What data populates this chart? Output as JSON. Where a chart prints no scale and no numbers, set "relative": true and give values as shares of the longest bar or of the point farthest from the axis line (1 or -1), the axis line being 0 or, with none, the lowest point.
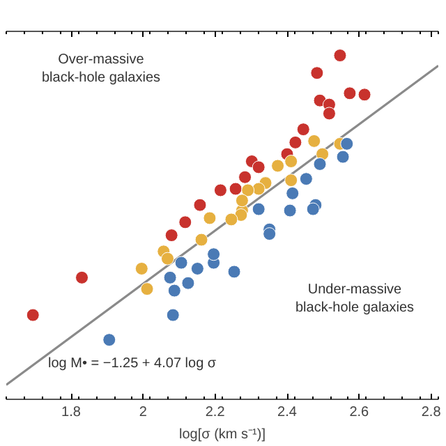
{
  "chart_data": {
    "type": "scatter",
    "relative": true,
    "xlabel": "log[σ (km s⁻¹)]",
    "xlim": [
      1.62,
      2.82
    ],
    "xticks": [
      1.8,
      2.0,
      2.2,
      2.4,
      2.6,
      2.8
    ],
    "tick_labels": "x",
    "grid": false,
    "marker": "circle",
    "annotations": [
      "Over-massive black-hole galaxies",
      "Under-massive black-hole galaxies",
      "log M• = −1.25 + 4.07 log σ"
    ],
    "series": [
      {
        "type": "line",
        "marker": "none",
        "color": "#8a8a8a",
        "x": [
          1.62,
          2.82
        ],
        "values": [
          0.042,
          0.97
        ]
      },
      {
        "color": "#c8322d",
        "x": [
          2.547,
          2.483,
          2.574,
          2.615,
          2.491,
          2.517,
          2.517,
          2.445,
          2.423,
          2.4,
          2.302,
          2.321,
          2.283,
          2.257,
          2.215,
          2.158,
          2.117,
          2.079,
          1.83,
          1.694
        ],
        "values": [
          1.0,
          0.949,
          0.89,
          0.886,
          0.869,
          0.857,
          0.831,
          0.785,
          0.747,
          0.713,
          0.692,
          0.675,
          0.646,
          0.612,
          0.608,
          0.565,
          0.515,
          0.477,
          0.354,
          0.245
        ]
      },
      {
        "color": "#e6b040",
        "x": [
          2.547,
          2.475,
          2.498,
          2.411,
          2.374,
          2.34,
          2.321,
          2.291,
          2.411,
          2.275,
          2.185,
          2.272,
          2.162,
          2.057,
          2.068,
          1.996,
          2.011,
          2.245,
          2.275
        ],
        "values": [
          0.743,
          0.751,
          0.713,
          0.692,
          0.679,
          0.629,
          0.612,
          0.608,
          0.637,
          0.549,
          0.527,
          0.536,
          0.464,
          0.43,
          0.409,
          0.38,
          0.321,
          0.523,
          0.578
        ]
      },
      {
        "color": "#4a7ab5",
        "x": [
          2.566,
          2.555,
          2.491,
          2.453,
          2.415,
          2.479,
          2.408,
          2.351,
          2.472,
          2.351,
          2.253,
          2.196,
          2.151,
          2.106,
          2.125,
          2.075,
          2.087,
          2.083,
          1.906,
          2.196,
          2.321
        ],
        "values": [
          0.743,
          0.705,
          0.684,
          0.641,
          0.599,
          0.565,
          0.549,
          0.494,
          0.553,
          0.481,
          0.371,
          0.397,
          0.38,
          0.397,
          0.338,
          0.354,
          0.316,
          0.245,
          0.173,
          0.422,
          0.553
        ]
      }
    ]
  }
}
